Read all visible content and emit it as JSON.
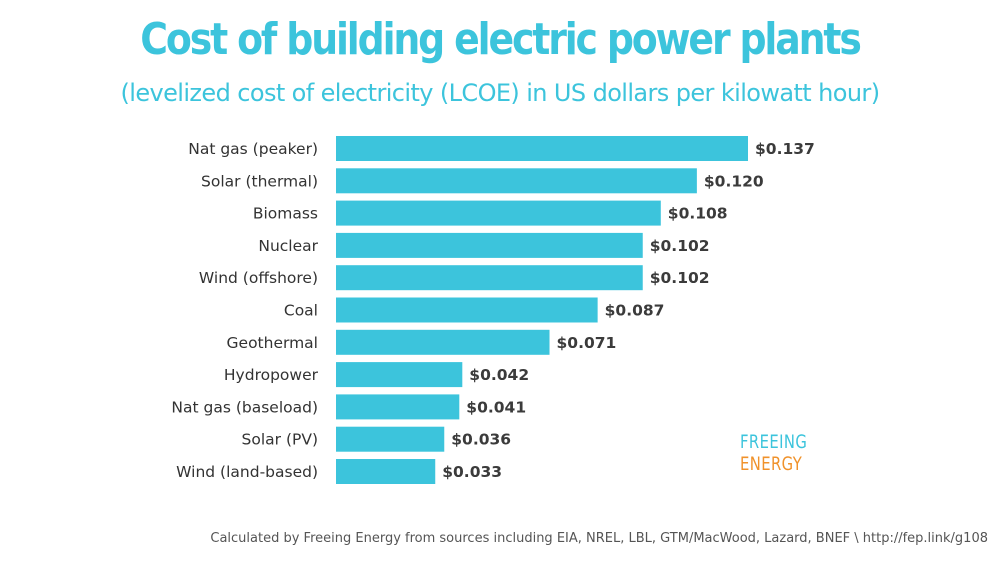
{
  "chart_data": {
    "type": "bar",
    "orientation": "horizontal",
    "title": "Cost of building electric power plants",
    "subtitle": "(levelized cost of electricity (LCOE) in US dollars per kilowatt hour)",
    "categories": [
      "Nat gas (peaker)",
      "Solar (thermal)",
      "Biomass",
      "Nuclear",
      "Wind (offshore)",
      "Coal",
      "Geothermal",
      "Hydropower",
      "Nat gas (baseload)",
      "Solar (PV)",
      "Wind (land-based)"
    ],
    "values": [
      0.137,
      0.12,
      0.108,
      0.102,
      0.102,
      0.087,
      0.071,
      0.042,
      0.041,
      0.036,
      0.033
    ],
    "value_labels": [
      "$0.137",
      "$0.120",
      "$0.108",
      "$0.102",
      "$0.102",
      "$0.087",
      "$0.071",
      "$0.042",
      "$0.041",
      "$0.036",
      "$0.033"
    ],
    "xlabel": "",
    "ylabel": "",
    "xlim": [
      0,
      0.137
    ],
    "grid": false,
    "legend": false,
    "bar_color": "#3cc4dc"
  },
  "branding": {
    "line1": "FREEING",
    "line2": "ENERGY",
    "color1": "#3cc4dc",
    "color2": "#f0922b"
  },
  "source": "Calculated by Freeing Energy from sources including EIA, NREL, LBL, GTM/MacWood, Lazard, BNEF \\ http://fep.link/g108"
}
